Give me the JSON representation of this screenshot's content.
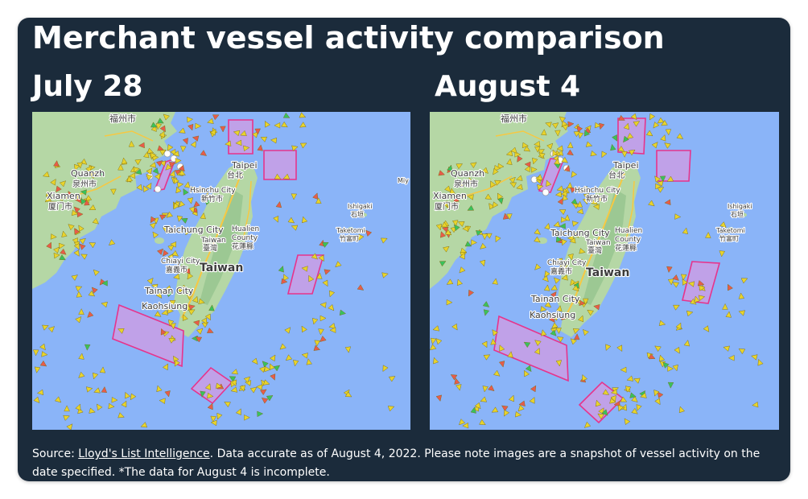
{
  "title": "Merchant vessel activity comparison",
  "panels": [
    {
      "date": "July 28"
    },
    {
      "date": "August 4"
    }
  ],
  "places": {
    "fuzhou": "福州市",
    "quanzhou": "Quanzh",
    "quanzhou_cn": "泉州市",
    "xiamen": "Xiamen",
    "xiamen_cn": "厦门市",
    "taipei": "Taipei",
    "taipei_cn": "台北",
    "hsinchu": "Hsinchu City",
    "hsinchu_cn": "新竹市",
    "taichung": "Taichung City",
    "taiwan_small": "Taiwan",
    "taiwan_small_cn": "臺灣",
    "hualien": "Hualien",
    "hualien_county": "County",
    "hualien_cn": "花蓮縣",
    "chiayi": "Chiayi City",
    "chiayi_cn": "嘉義市",
    "taiwan": "Taiwan",
    "tainan": "Tainan City",
    "kaohsiung": "Kaohsiung",
    "ishigaki": "Ishigaki",
    "ishigaki_cn": "石垣",
    "taketomi": "Taketomi",
    "taketomi_cn": "竹富町",
    "miyako": "Miy"
  },
  "source": {
    "prefix": "Source: ",
    "link": "Lloyd's List Intelligence",
    "rest": ". Data accurate as of August 4, 2022. Please note images are a snapshot of vessel activity on the date specified. *The data for August 4 is incomplete."
  },
  "colors": {
    "background": "#1b2b3b",
    "sea": "#8ab4f8",
    "land": "#b5d7a5",
    "exercise_zone_fill": "#c59ee6",
    "exercise_zone_stroke": "#e6348c",
    "vessel_cargo": "#e8d32c",
    "vessel_tanker": "#e85b4a",
    "vessel_other": "#38c25c"
  },
  "icons": {
    "vessel": "triangle-marker-icon",
    "port": "white-circle-marker-icon"
  }
}
